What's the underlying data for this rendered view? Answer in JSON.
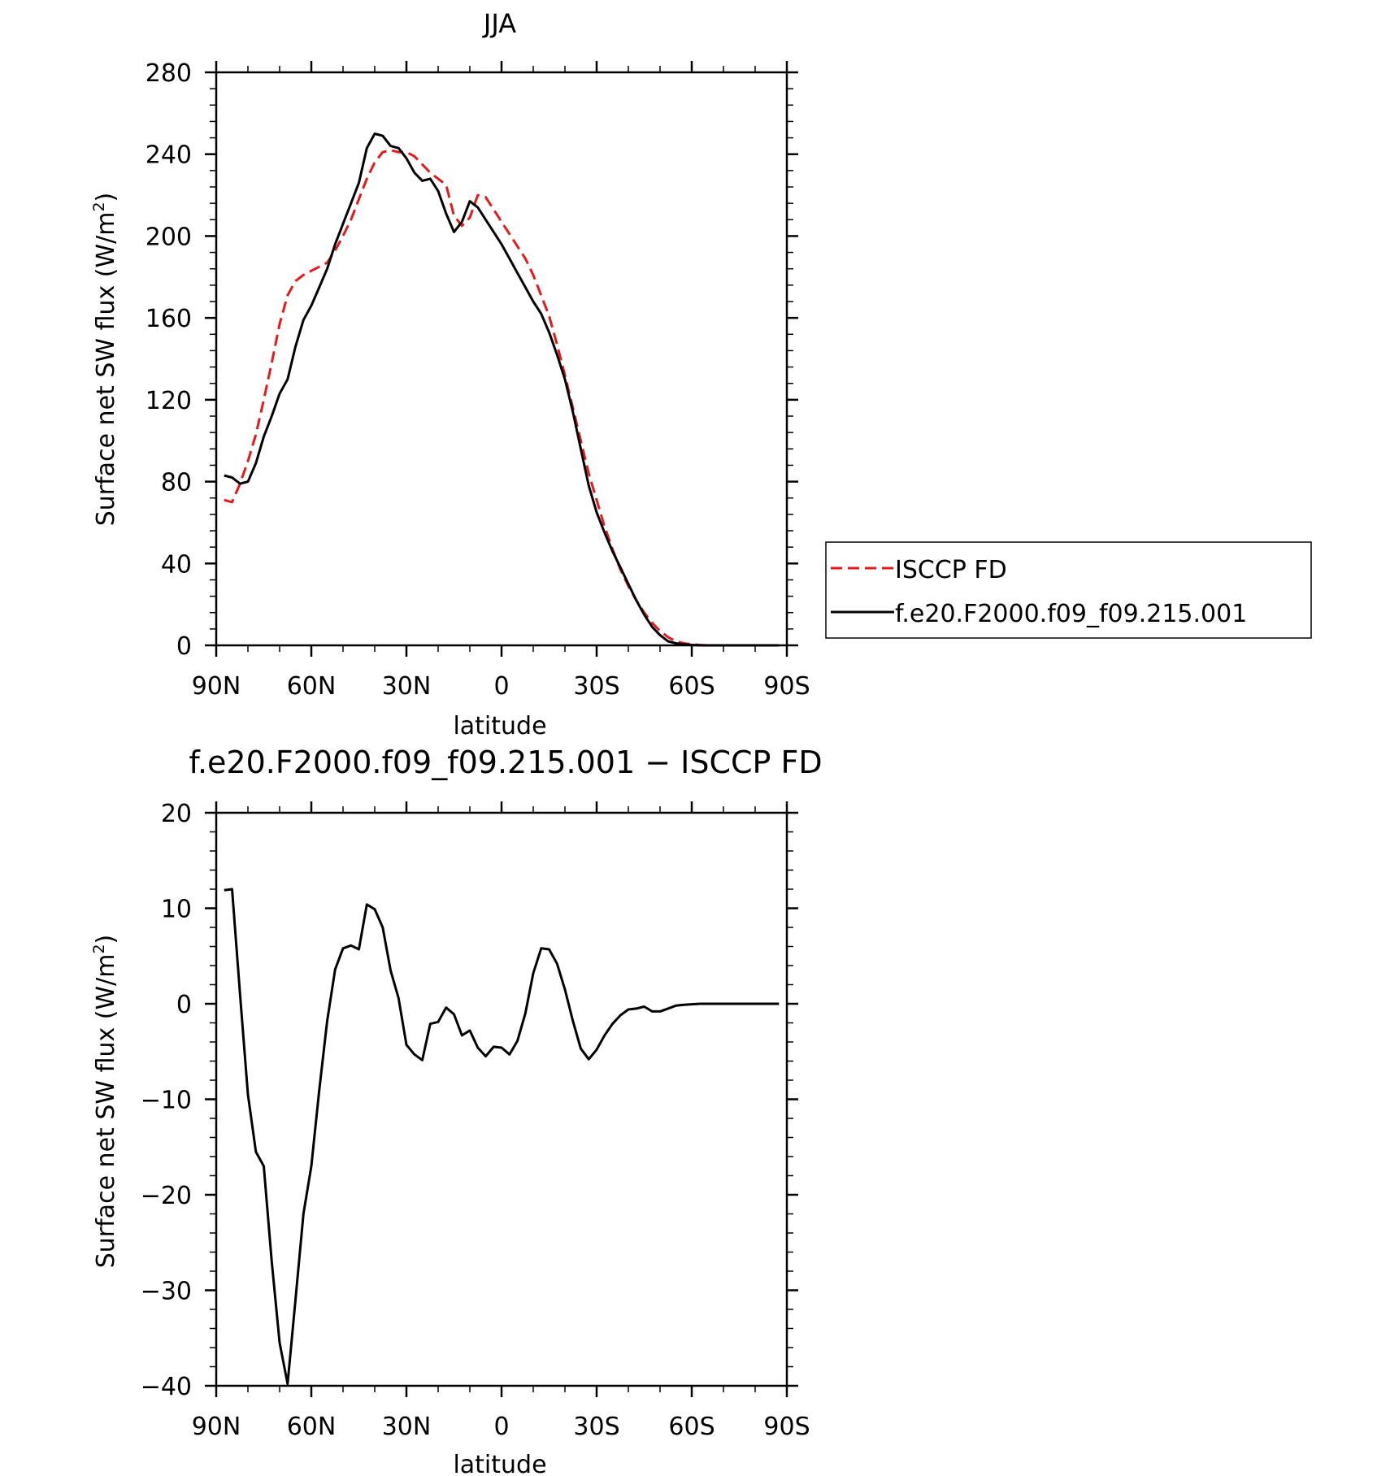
{
  "chart_data": [
    {
      "type": "line",
      "title": "JJA",
      "xlabel": "latitude",
      "ylabel": "Surface net SW flux (W/m²)",
      "ylabel_main": "Surface net SW flux (W/m",
      "ylabel_sup": "2",
      "ylabel_end": ")",
      "xlim": [
        90,
        -90
      ],
      "ylim": [
        0,
        280
      ],
      "xticks": [
        90,
        60,
        30,
        0,
        -30,
        -60,
        -90
      ],
      "xticklabels": [
        "90N",
        "60N",
        "30N",
        "0",
        "30S",
        "60S",
        "90S"
      ],
      "yticks": [
        0,
        40,
        80,
        120,
        160,
        200,
        240,
        280
      ],
      "yticklabels": [
        "0",
        "40",
        "80",
        "120",
        "160",
        "200",
        "240",
        "280"
      ],
      "grid": false,
      "legend_position": "right, outside plot",
      "series": [
        {
          "name": "ISCCP FD",
          "color": "#e41a1c",
          "dash": "dashed",
          "x": [
            87.5,
            85,
            82.5,
            80,
            77.5,
            75,
            72.5,
            70,
            67.5,
            65,
            62.5,
            60,
            57.5,
            55,
            52.5,
            50,
            47.5,
            45,
            42.5,
            40,
            37.5,
            35,
            32.5,
            30,
            27.5,
            25,
            22.5,
            20,
            17.5,
            15,
            12.5,
            10,
            7.5,
            5,
            2.5,
            0,
            -2.5,
            -5,
            -7.5,
            -10,
            -12.5,
            -15,
            -17.5,
            -20,
            -22.5,
            -25,
            -27.5,
            -30,
            -32.5,
            -35,
            -37.5,
            -40,
            -42.5,
            -45,
            -47.5,
            -50,
            -52.5,
            -55,
            -57.5,
            -60,
            -62.5,
            -65,
            -67.5,
            -70,
            -72.5,
            -75,
            -77.5,
            -80,
            -82.5,
            -85,
            -87.5
          ],
          "y": [
            71,
            70,
            79,
            90,
            103,
            120,
            138,
            157,
            171,
            178,
            181,
            183,
            185,
            187,
            193,
            200,
            208,
            218,
            228,
            236,
            241,
            242,
            241,
            241,
            239,
            235,
            231,
            228,
            225,
            210,
            205,
            209,
            220,
            219,
            213,
            207,
            201,
            195,
            189,
            181,
            171,
            161,
            147,
            132,
            116,
            100,
            84,
            71,
            58,
            47,
            37,
            29,
            22,
            16,
            11,
            7,
            4,
            2,
            1,
            0.5,
            0.2,
            0,
            0,
            0,
            0,
            0,
            0,
            0,
            0,
            0,
            0
          ]
        },
        {
          "name": "f.e20.F2000.f09_f09.215.001",
          "color": "#000000",
          "dash": "solid",
          "x": [
            87.5,
            85,
            82.5,
            80,
            77.5,
            75,
            72.5,
            70,
            67.5,
            65,
            62.5,
            60,
            57.5,
            55,
            52.5,
            50,
            47.5,
            45,
            42.5,
            40,
            37.5,
            35,
            32.5,
            30,
            27.5,
            25,
            22.5,
            20,
            17.5,
            15,
            12.5,
            10,
            7.5,
            5,
            2.5,
            0,
            -2.5,
            -5,
            -7.5,
            -10,
            -12.5,
            -15,
            -17.5,
            -20,
            -22.5,
            -25,
            -27.5,
            -30,
            -32.5,
            -35,
            -37.5,
            -40,
            -42.5,
            -45,
            -47.5,
            -50,
            -52.5,
            -55,
            -57.5,
            -60,
            -62.5,
            -65,
            -67.5,
            -70,
            -72.5,
            -75,
            -77.5,
            -80,
            -82.5,
            -85,
            -87.5
          ],
          "y": [
            83,
            82,
            79,
            80,
            89,
            102,
            112,
            123,
            130,
            146,
            159,
            166,
            175,
            184,
            196,
            206,
            216,
            226,
            243,
            250,
            249,
            244,
            243,
            238,
            231,
            227,
            228,
            222,
            211,
            202,
            207,
            217,
            214,
            208,
            202,
            196,
            189,
            182,
            175,
            168,
            162,
            153,
            142,
            130,
            114,
            96,
            78,
            65,
            55,
            46,
            38,
            30,
            22,
            15,
            9,
            5,
            2,
            1,
            0.5,
            0.2,
            0,
            0,
            0,
            0,
            0,
            0,
            0,
            0,
            0,
            0,
            0
          ]
        }
      ]
    },
    {
      "type": "line",
      "title": "f.e20.F2000.f09_f09.215.001 − ISCCP FD",
      "xlabel": "latitude",
      "ylabel": "Surface net SW flux (W/m²)",
      "ylabel_main": "Surface net SW flux (W/m",
      "ylabel_sup": "2",
      "ylabel_end": ")",
      "xlim": [
        90,
        -90
      ],
      "ylim": [
        -40,
        20
      ],
      "xticks": [
        90,
        60,
        30,
        0,
        -30,
        -60,
        -90
      ],
      "xticklabels": [
        "90N",
        "60N",
        "30N",
        "0",
        "30S",
        "60S",
        "90S"
      ],
      "yticks": [
        -40,
        -30,
        -20,
        -10,
        0,
        10,
        20
      ],
      "yticklabels": [
        "−40",
        "−30",
        "−20",
        "−10",
        "0",
        "10",
        "20"
      ],
      "grid": false,
      "series": [
        {
          "color": "#000000",
          "dash": "solid",
          "x": [
            87.5,
            85,
            82.5,
            80,
            77.5,
            75,
            72.5,
            70,
            67.5,
            65,
            62.5,
            60,
            57.5,
            55,
            52.5,
            50,
            47.5,
            45,
            42.5,
            40,
            37.5,
            35,
            32.5,
            30,
            27.5,
            25,
            22.5,
            20,
            17.5,
            15,
            12.5,
            10,
            7.5,
            5,
            2.5,
            0,
            -2.5,
            -5,
            -7.5,
            -10,
            -12.5,
            -15,
            -17.5,
            -20,
            -22.5,
            -25,
            -27.5,
            -30,
            -32.5,
            -35,
            -37.5,
            -40,
            -42.5,
            -45,
            -47.5,
            -50,
            -52.5,
            -55,
            -57.5,
            -60,
            -62.5,
            -65,
            -67.5,
            -70,
            -72.5,
            -75,
            -77.5,
            -80,
            -82.5,
            -85,
            -87.5
          ],
          "y": [
            11.9,
            12.0,
            1.0,
            -9.5,
            -15.5,
            -17.0,
            -27.0,
            -35.5,
            -39.8,
            -31.0,
            -22.0,
            -17.0,
            -9.0,
            -1.8,
            3.6,
            5.8,
            6.1,
            5.7,
            10.4,
            9.9,
            8.0,
            3.5,
            0.6,
            -4.3,
            -5.3,
            -5.9,
            -2.1,
            -1.9,
            -0.4,
            -1.1,
            -3.3,
            -2.8,
            -4.6,
            -5.5,
            -4.5,
            -4.6,
            -5.3,
            -3.9,
            -1.0,
            3.2,
            5.8,
            5.7,
            4.2,
            1.5,
            -1.8,
            -4.7,
            -5.8,
            -4.8,
            -3.3,
            -2.1,
            -1.2,
            -0.6,
            -0.5,
            -0.3,
            -0.8,
            -0.8,
            -0.5,
            -0.2,
            -0.1,
            -0.05,
            0,
            0,
            0,
            0,
            0,
            0,
            0,
            0,
            0,
            0,
            0
          ]
        }
      ]
    }
  ]
}
